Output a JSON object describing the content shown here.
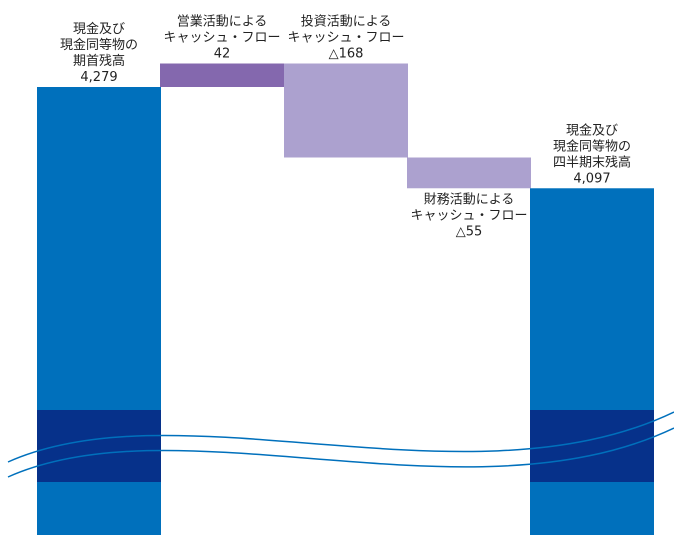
{
  "chart_data": {
    "type": "waterfall",
    "axis_break": true,
    "bars": [
      {
        "label_lines": [
          "現金及び",
          "現金同等物の",
          "期首残高"
        ],
        "value_text": "4,279",
        "value": 4279,
        "kind": "total",
        "color": "#0070bc"
      },
      {
        "label_lines": [
          "営業活動による",
          "キャッシュ・フロー"
        ],
        "value_text": "42",
        "value": 42,
        "kind": "delta",
        "color": "#8468ae"
      },
      {
        "label_lines": [
          "投資活動による",
          "キャッシュ・フロー"
        ],
        "value_text": "△168",
        "value": -168,
        "kind": "delta",
        "color": "#aca1cf"
      },
      {
        "label_lines": [
          "財務活動による",
          "キャッシュ・フロー"
        ],
        "value_text": "△55",
        "value": -55,
        "kind": "delta",
        "color": "#aca1cf"
      },
      {
        "label_lines": [
          "現金及び",
          "現金同等物の",
          "四半期末残高"
        ],
        "value_text": "4,097",
        "value": 4097,
        "kind": "total",
        "color": "#0070bc"
      }
    ],
    "break_band_color": "#06318a",
    "wave_color": "#0070bc"
  }
}
